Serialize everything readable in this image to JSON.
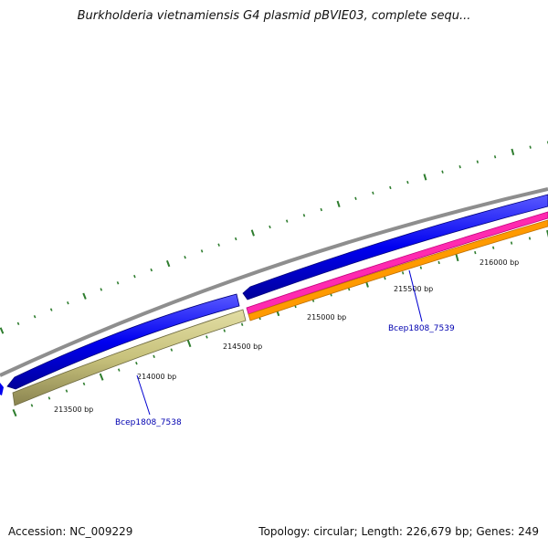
{
  "title": "Burkholderia vietnamiensis G4 plasmid pBVIE03, complete sequ...",
  "footer": {
    "accession": "Accession: NC_009229",
    "summary": "Topology: circular; Length: 226,679 bp; Genes: 249"
  },
  "colors": {
    "backbone": "#8e8e8e",
    "cds_forward": "#0000f0",
    "cds_reverse": "#c8c27c",
    "rna_magenta": "#ff2ab0",
    "rna_orange": "#ff9a00",
    "tick": "#2e7d2e",
    "gene_label": "#0000b0"
  },
  "map": {
    "icons": [
      "plasmid-backbone",
      "forward-cds-arrow",
      "reverse-cds-arrow"
    ],
    "position_labels": [
      "213500 bp",
      "214000 bp",
      "214500 bp",
      "215000 bp",
      "215500 bp",
      "216000 bp"
    ],
    "genes": [
      {
        "name": "Bcep1808_7538",
        "track": "reverse"
      },
      {
        "name": "Bcep1808_7539",
        "track": "forward"
      }
    ]
  }
}
